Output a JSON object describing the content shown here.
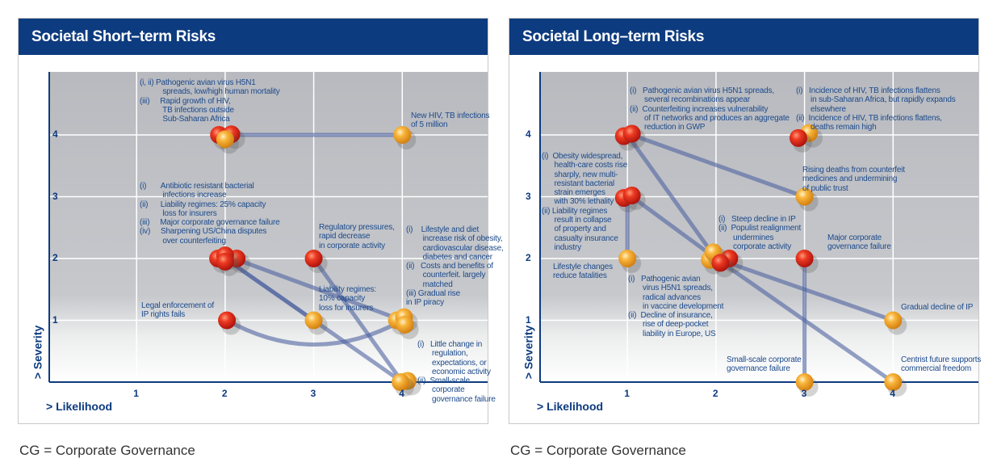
{
  "footnote": "CG = Corporate Governance",
  "colors": {
    "title_bar": "#0d3b7f",
    "text": "#1c4a8c",
    "red": "#d8231a",
    "orange": "#f2a31e"
  },
  "chart_data": [
    {
      "type": "scatter",
      "title": "Societal Short–term Risks",
      "xlabel": "> Likelihood",
      "ylabel": "> Severity",
      "xticks": [
        "1",
        "2",
        "3",
        "4"
      ],
      "yticks": [
        "1",
        "2",
        "3",
        "4"
      ],
      "xlim": [
        0,
        4.9
      ],
      "ylim": [
        0,
        5
      ],
      "grid": true,
      "points": [
        {
          "x": 1.93,
          "y": 4.0,
          "color": "red"
        },
        {
          "x": 2.07,
          "y": 4.01,
          "color": "red"
        },
        {
          "x": 2.0,
          "y": 3.93,
          "color": "orange"
        },
        {
          "x": 4.0,
          "y": 4.0,
          "color": "orange"
        },
        {
          "x": 1.92,
          "y": 2.0,
          "color": "red"
        },
        {
          "x": 2.13,
          "y": 2.0,
          "color": "red"
        },
        {
          "x": 2.0,
          "y": 2.05,
          "color": "red"
        },
        {
          "x": 2.0,
          "y": 1.95,
          "color": "red"
        },
        {
          "x": 3.0,
          "y": 2.0,
          "color": "red"
        },
        {
          "x": 2.02,
          "y": 1.0,
          "color": "red"
        },
        {
          "x": 3.0,
          "y": 1.0,
          "color": "orange"
        },
        {
          "x": 3.94,
          "y": 1.0,
          "color": "orange"
        },
        {
          "x": 4.02,
          "y": 1.05,
          "color": "orange"
        },
        {
          "x": 4.03,
          "y": 0.93,
          "color": "orange"
        },
        {
          "x": 4.06,
          "y": 0.02,
          "color": "orange"
        },
        {
          "x": 3.98,
          "y": 0.0,
          "color": "orange"
        }
      ],
      "links": [
        [
          2.05,
          4,
          4,
          4
        ],
        [
          2,
          2,
          4,
          0
        ],
        [
          2,
          2,
          3,
          1
        ],
        [
          2.1,
          2,
          4,
          1
        ],
        [
          3,
          2,
          4,
          0
        ],
        [
          2.02,
          1,
          4,
          1,
          "curve"
        ]
      ],
      "annotations": [
        "(i, ii) Pathogenic avian virus H5N1\n           spreads, low/high human mortality\n(iii)     Rapid growth of HIV,\n           TB infections outside\n           Sub-Saharan Africa",
        "New HIV, TB infections\nof 5 million",
        "(i)       Antibiotic resistant bacterial\n           infections increase\n(ii)      Liability regimes: 25% capacity\n           loss for insurers\n(iii)     Major corporate governance failure\n(iv)     Sharpening US/China disputes\n           over counterfeiting",
        "Regulatory pressures,\nrapid decrease\nin corporate activity",
        "(i)    Lifestyle and diet\n        increase risk of obesity,\n        cardiovascular disease,\n        diabetes and cancer\n(ii)   Costs and benefits of\n        counterfeit. largely\n        matched\n(iii) Gradual rise\nin IP piracy",
        "Legal enforcement of\nIP rights fails",
        "Liability regimes:\n10% capacity\nloss for insurers",
        "(i)   Little change in\n       regulation,\n       expectations, or\n       economic activity\n(ii)  Small-scale\n       corporate\n       governance failure"
      ]
    },
    {
      "type": "scatter",
      "title": "Societal Long–term Risks",
      "xlabel": "> Likelihood",
      "ylabel": "> Severity",
      "xticks": [
        "1",
        "2",
        "3",
        "4"
      ],
      "yticks": [
        "1",
        "2",
        "3",
        "4"
      ],
      "xlim": [
        0,
        4.9
      ],
      "ylim": [
        0,
        5
      ],
      "grid": true,
      "points": [
        {
          "x": 0.96,
          "y": 3.98,
          "color": "red"
        },
        {
          "x": 1.05,
          "y": 4.02,
          "color": "red"
        },
        {
          "x": 3.05,
          "y": 4.03,
          "color": "orange"
        },
        {
          "x": 2.93,
          "y": 3.95,
          "color": "red"
        },
        {
          "x": 0.96,
          "y": 2.98,
          "color": "red"
        },
        {
          "x": 1.05,
          "y": 3.02,
          "color": "red"
        },
        {
          "x": 1.0,
          "y": 2.0,
          "color": "orange"
        },
        {
          "x": 2.15,
          "y": 2.0,
          "color": "red"
        },
        {
          "x": 1.93,
          "y": 1.98,
          "color": "orange"
        },
        {
          "x": 1.97,
          "y": 2.1,
          "color": "orange"
        },
        {
          "x": 2.05,
          "y": 1.93,
          "color": "red"
        },
        {
          "x": 3.0,
          "y": 3.0,
          "color": "orange"
        },
        {
          "x": 3.0,
          "y": 2.0,
          "color": "red"
        },
        {
          "x": 4.0,
          "y": 1.0,
          "color": "orange"
        },
        {
          "x": 3.0,
          "y": 0.0,
          "color": "orange"
        },
        {
          "x": 4.0,
          "y": 0.0,
          "color": "orange"
        }
      ],
      "links": [
        [
          1.05,
          4,
          3,
          3
        ],
        [
          1,
          4,
          2,
          2
        ],
        [
          1,
          3,
          1,
          2
        ],
        [
          1.05,
          3,
          2,
          2
        ],
        [
          2,
          2,
          4,
          1
        ],
        [
          2.05,
          1.95,
          4,
          0
        ],
        [
          3,
          2,
          3,
          0
        ]
      ],
      "annotations": [
        "(i)   Pathogenic avian virus H5N1 spreads,\n       several recombinations appear\n(ii)  Counterfeiting increases vulnerability\n       of IT networks and produces an aggregate\n       reduction in GWP",
        "(i)   Incidence of HIV, TB infections flattens\n       in sub-Saharan Africa, but rapidly expands\n       elsewhere\n(ii)  Incidence of HIV, TB infections flattens,\n       deaths remain high",
        "(i)  Obesity widespread,\n      health-care costs rise\n      sharply, new multi-\n      resistant bacterial\n      strain emerges\n      with 30% lethality\n(ii) Liability regimes\n      result in collapse\n      of property and\n      casualty insurance\n      industry",
        "Rising deaths from counterfeit\nmedicines and undermining\nof public trust",
        "(i)   Steep decline in IP\n(ii)  Populist realignment\n       undermines\n       corporate activity",
        "Major corporate\ngovernance failure",
        "Lifestyle changes\nreduce fatalities",
        "(i)   Pathogenic avian\n       virus H5N1 spreads,\n       radical advances\n       in vaccine development\n(ii)  Decline of insurance,\n       rise of deep-pocket\n       liability in Europe, US",
        "Gradual decline of IP",
        "Small-scale corporate\ngovernance failure",
        "Centrist future supports\ncommercial freedom"
      ]
    }
  ]
}
